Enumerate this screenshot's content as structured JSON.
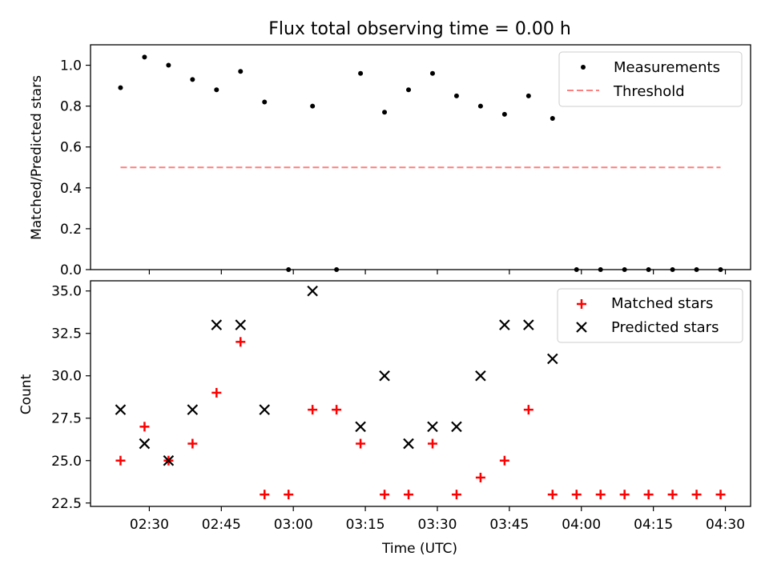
{
  "chart_data": {
    "type": "scatter",
    "title": "Flux total observing time = 0.00 h",
    "xlabel": "Time (UTC)",
    "x_ticks": [
      "02:30",
      "02:45",
      "03:00",
      "03:15",
      "03:30",
      "03:45",
      "04:00",
      "04:15",
      "04:30"
    ],
    "xlim": [
      "02:17:45",
      "04:35:15"
    ],
    "top_panel": {
      "ylabel": "Matched/Predicted stars",
      "ylim": [
        0.0,
        1.1
      ],
      "y_ticks": [
        "0.0",
        "0.2",
        "0.4",
        "0.6",
        "0.8",
        "1.0"
      ],
      "legend_position": "upper right",
      "series": [
        {
          "name": "Measurements",
          "marker": "dot",
          "color": "#000000",
          "points": [
            [
              "02:24",
              0.89
            ],
            [
              "02:29",
              1.04
            ],
            [
              "02:34",
              1.0
            ],
            [
              "02:39",
              0.93
            ],
            [
              "02:44",
              0.88
            ],
            [
              "02:49",
              0.97
            ],
            [
              "02:54",
              0.82
            ],
            [
              "02:59",
              0.0
            ],
            [
              "03:04",
              0.8
            ],
            [
              "03:09",
              0.0
            ],
            [
              "03:14",
              0.96
            ],
            [
              "03:19",
              0.77
            ],
            [
              "03:24",
              0.88
            ],
            [
              "03:29",
              0.96
            ],
            [
              "03:34",
              0.85
            ],
            [
              "03:39",
              0.8
            ],
            [
              "03:44",
              0.76
            ],
            [
              "03:49",
              0.85
            ],
            [
              "03:54",
              0.74
            ],
            [
              "03:59",
              0.0
            ],
            [
              "04:04",
              0.0
            ],
            [
              "04:09",
              0.0
            ],
            [
              "04:14",
              0.0
            ],
            [
              "04:19",
              0.0
            ],
            [
              "04:24",
              0.0
            ],
            [
              "04:29",
              0.0
            ]
          ]
        },
        {
          "name": "Threshold",
          "marker": "dashed-line",
          "color": "#ff7f7f",
          "points": [
            [
              "02:24",
              0.5
            ],
            [
              "04:29",
              0.5
            ]
          ]
        }
      ]
    },
    "bottom_panel": {
      "ylabel": "Count",
      "ylim": [
        22.3,
        35.6
      ],
      "y_ticks": [
        "22.5",
        "25.0",
        "27.5",
        "30.0",
        "32.5",
        "35.0"
      ],
      "legend_position": "upper right",
      "series": [
        {
          "name": "Matched stars",
          "marker": "plus",
          "color": "#ff0000",
          "points": [
            [
              "02:24",
              25
            ],
            [
              "02:29",
              27
            ],
            [
              "02:34",
              25
            ],
            [
              "02:39",
              26
            ],
            [
              "02:44",
              29
            ],
            [
              "02:49",
              32
            ],
            [
              "02:54",
              23
            ],
            [
              "02:59",
              23
            ],
            [
              "03:04",
              28
            ],
            [
              "03:09",
              28
            ],
            [
              "03:14",
              26
            ],
            [
              "03:19",
              23
            ],
            [
              "03:24",
              23
            ],
            [
              "03:29",
              26
            ],
            [
              "03:34",
              23
            ],
            [
              "03:39",
              24
            ],
            [
              "03:44",
              25
            ],
            [
              "03:49",
              28
            ],
            [
              "03:54",
              23
            ],
            [
              "03:59",
              23
            ],
            [
              "04:04",
              23
            ],
            [
              "04:09",
              23
            ],
            [
              "04:14",
              23
            ],
            [
              "04:19",
              23
            ],
            [
              "04:24",
              23
            ],
            [
              "04:29",
              23
            ]
          ]
        },
        {
          "name": "Predicted stars",
          "marker": "x",
          "color": "#000000",
          "points": [
            [
              "02:24",
              28
            ],
            [
              "02:29",
              26
            ],
            [
              "02:34",
              25
            ],
            [
              "02:39",
              28
            ],
            [
              "02:44",
              33
            ],
            [
              "02:49",
              33
            ],
            [
              "02:54",
              28
            ],
            [
              "03:04",
              35
            ],
            [
              "03:14",
              27
            ],
            [
              "03:19",
              30
            ],
            [
              "03:24",
              26
            ],
            [
              "03:29",
              27
            ],
            [
              "03:34",
              27
            ],
            [
              "03:39",
              30
            ],
            [
              "03:44",
              33
            ],
            [
              "03:49",
              33
            ],
            [
              "03:54",
              31
            ]
          ]
        }
      ]
    }
  }
}
